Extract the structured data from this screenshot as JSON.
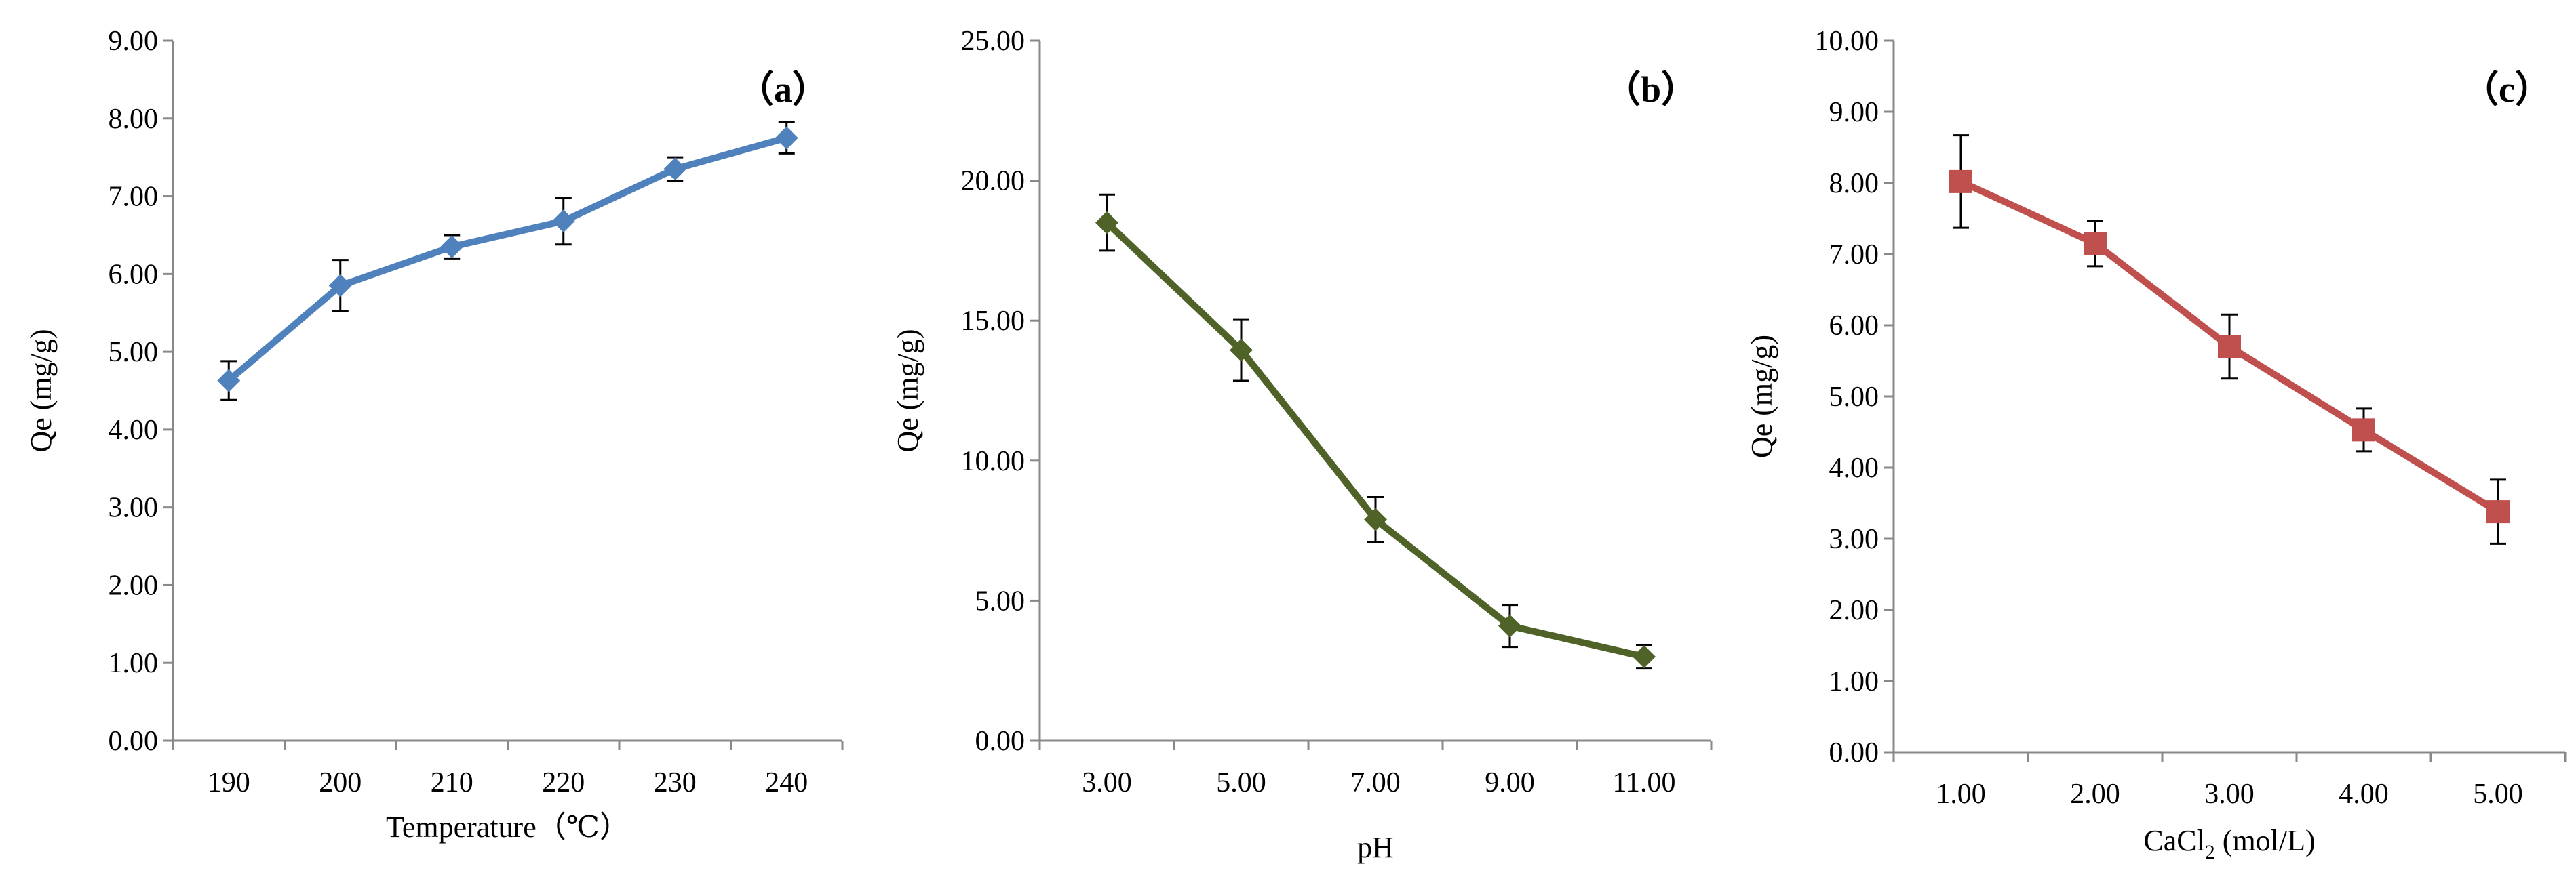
{
  "chart_data": [
    {
      "type": "line",
      "panel_label": "（a）",
      "title": "",
      "xlabel": "Temperature（℃）",
      "ylabel": "Qe (mg/g)",
      "categories": [
        "190",
        "200",
        "210",
        "220",
        "230",
        "240"
      ],
      "ylim": [
        0,
        9
      ],
      "ystep": 1,
      "ytick_labels": [
        "0.00",
        "1.00",
        "2.00",
        "3.00",
        "4.00",
        "5.00",
        "6.00",
        "7.00",
        "8.00",
        "9.00"
      ],
      "marker": "diamond",
      "color": "#4F81BD",
      "grid": false,
      "series": [
        {
          "values": [
            4.63,
            5.85,
            6.35,
            6.68,
            7.35,
            7.75
          ],
          "errors": [
            0.25,
            0.33,
            0.15,
            0.3,
            0.15,
            0.2
          ]
        }
      ]
    },
    {
      "type": "line",
      "panel_label": "（b）",
      "title": "",
      "xlabel": "pH",
      "ylabel": "Qe (mg/g)",
      "categories": [
        "3.00",
        "5.00",
        "7.00",
        "9.00",
        "11.00"
      ],
      "ylim": [
        0,
        25
      ],
      "ystep": 5,
      "ytick_labels": [
        "0.00",
        "5.00",
        "10.00",
        "15.00",
        "20.00",
        "25.00"
      ],
      "marker": "diamond",
      "color": "#4F6228",
      "grid": false,
      "series": [
        {
          "values": [
            18.5,
            13.95,
            7.9,
            4.1,
            3.0
          ],
          "errors": [
            1.0,
            1.1,
            0.8,
            0.75,
            0.4
          ]
        }
      ]
    },
    {
      "type": "line",
      "panel_label": "（c）",
      "title": "",
      "xlabel": "CaCl2 (mol/L)",
      "xlabel_parts": [
        "CaCl",
        "2",
        " (mol/L)"
      ],
      "ylabel": "Qe (mg/g)",
      "categories": [
        "1.00",
        "2.00",
        "3.00",
        "4.00",
        "5.00"
      ],
      "ylim": [
        0,
        10
      ],
      "ystep": 1,
      "ytick_labels": [
        "0.00",
        "1.00",
        "2.00",
        "3.00",
        "4.00",
        "5.00",
        "6.00",
        "7.00",
        "8.00",
        "9.00",
        "10.00"
      ],
      "marker": "square",
      "color": "#C0504D",
      "grid": false,
      "series": [
        {
          "values": [
            8.02,
            7.15,
            5.7,
            4.53,
            3.38
          ],
          "errors": [
            0.65,
            0.32,
            0.45,
            0.3,
            0.45
          ]
        }
      ]
    }
  ]
}
